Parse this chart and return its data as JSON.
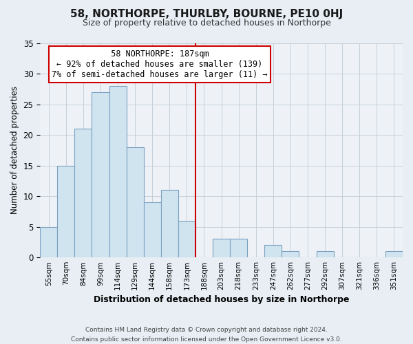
{
  "title": "58, NORTHORPE, THURLBY, BOURNE, PE10 0HJ",
  "subtitle": "Size of property relative to detached houses in Northorpe",
  "xlabel": "Distribution of detached houses by size in Northorpe",
  "ylabel": "Number of detached properties",
  "footer_line1": "Contains HM Land Registry data © Crown copyright and database right 2024.",
  "footer_line2": "Contains public sector information licensed under the Open Government Licence v3.0.",
  "bin_labels": [
    "55sqm",
    "70sqm",
    "84sqm",
    "99sqm",
    "114sqm",
    "129sqm",
    "144sqm",
    "158sqm",
    "173sqm",
    "188sqm",
    "203sqm",
    "218sqm",
    "233sqm",
    "247sqm",
    "262sqm",
    "277sqm",
    "292sqm",
    "307sqm",
    "321sqm",
    "336sqm",
    "351sqm"
  ],
  "bar_values": [
    5,
    15,
    21,
    27,
    28,
    18,
    9,
    11,
    6,
    0,
    3,
    3,
    0,
    2,
    1,
    0,
    1,
    0,
    0,
    0,
    1
  ],
  "bar_color": "#d0e4f0",
  "bar_edge_color": "#7aA0c0",
  "annotation_title": "58 NORTHORPE: 187sqm",
  "annotation_line1": "← 92% of detached houses are smaller (139)",
  "annotation_line2": "7% of semi-detached houses are larger (11) →",
  "marker_bin_index": 9,
  "ylim": [
    0,
    35
  ],
  "yticks": [
    0,
    5,
    10,
    15,
    20,
    25,
    30,
    35
  ],
  "background_color": "#e8eef4",
  "plot_bg_color": "#eef2f7",
  "grid_color": "#c5cfd8",
  "annotation_box_color": "#ffffff",
  "annotation_box_edge": "#cc0000",
  "marker_line_color": "#cc0000",
  "title_fontsize": 11,
  "subtitle_fontsize": 9
}
